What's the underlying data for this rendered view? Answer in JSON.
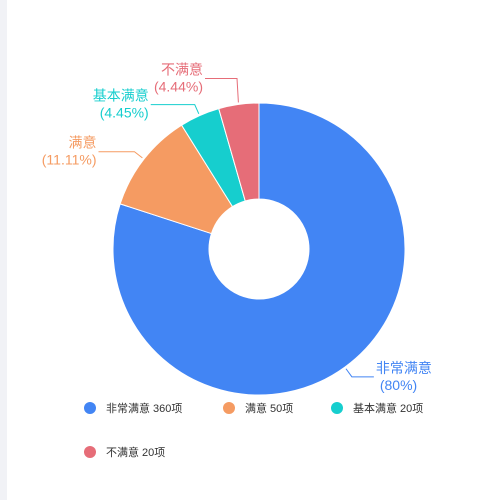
{
  "chart_data": {
    "type": "pie",
    "variant": "donut",
    "title": "",
    "categories": [
      "非常满意",
      "满意",
      "基本满意",
      "不满意"
    ],
    "values": [
      360,
      50,
      20,
      20
    ],
    "slice_labels": [
      [
        "非常满意",
        "(80%)"
      ],
      [
        "满意",
        "(11.11%)"
      ],
      [
        "基本满意",
        "(4.45%)"
      ],
      [
        "不满意",
        "(4.44%)"
      ]
    ],
    "legend": [
      "非常满意 360项",
      "满意 50项",
      "基本满意 20项",
      "不满意 20项"
    ],
    "colors": [
      "#4285f4",
      "#f59b62",
      "#16cece",
      "#e66d78"
    ],
    "legend_placement": "bottom-left"
  }
}
